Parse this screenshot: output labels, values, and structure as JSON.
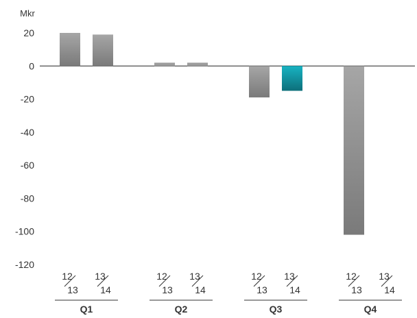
{
  "chart_data": {
    "type": "bar",
    "unit_label": "Mkr",
    "ylim": [
      -120,
      20
    ],
    "yticks": [
      20,
      0,
      -20,
      -40,
      -60,
      -80,
      -100,
      -120
    ],
    "grid": false,
    "categories": [
      "Q1",
      "Q2",
      "Q3",
      "Q4"
    ],
    "period_labels": [
      {
        "top": "12",
        "bottom": "13"
      },
      {
        "top": "13",
        "bottom": "14"
      }
    ],
    "series": [
      {
        "values": [
          20,
          2,
          -19,
          -102
        ],
        "color": "#9d9d9d"
      },
      {
        "values": [
          19,
          2,
          -15,
          null
        ],
        "color": "#9d9d9d"
      }
    ],
    "highlight": {
      "category_index": 2,
      "series_index": 1,
      "color": "#1aa0ad"
    }
  }
}
